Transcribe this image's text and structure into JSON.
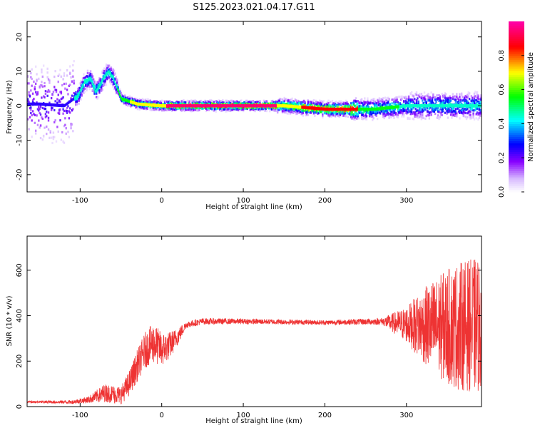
{
  "title": "S125.2023.021.04.17.G11",
  "chart_data": [
    {
      "type": "heatmap",
      "xlabel": "Height of straight line (km)",
      "ylabel": "Frequency (Hz)",
      "xlim": [
        -165,
        392
      ],
      "ylim": [
        -25,
        24.5
      ],
      "xticks": [
        -100,
        0,
        100,
        200,
        300
      ],
      "yticks": [
        -20,
        -10,
        0,
        10,
        20
      ],
      "ridge": [
        {
          "x": -150,
          "y": 0.5
        },
        {
          "x": -120,
          "y": 0
        },
        {
          "x": -103,
          "y": 3
        },
        {
          "x": -95,
          "y": 7
        },
        {
          "x": -88,
          "y": 8
        },
        {
          "x": -82,
          "y": 4
        },
        {
          "x": -76,
          "y": 6
        },
        {
          "x": -72,
          "y": 8
        },
        {
          "x": -66,
          "y": 10
        },
        {
          "x": -60,
          "y": 8
        },
        {
          "x": -50,
          "y": 2
        },
        {
          "x": -30,
          "y": 0.5
        },
        {
          "x": 0,
          "y": 0
        },
        {
          "x": 100,
          "y": 0
        },
        {
          "x": 150,
          "y": 0
        },
        {
          "x": 200,
          "y": -1
        },
        {
          "x": 260,
          "y": -1
        },
        {
          "x": 300,
          "y": 0
        },
        {
          "x": 350,
          "y": 0
        },
        {
          "x": 392,
          "y": 0
        }
      ],
      "colorbar": {
        "label": "Normalized spectral amplitude",
        "range": [
          0,
          1
        ],
        "ticks": [
          0.0,
          0.2,
          0.4,
          0.6,
          0.8
        ],
        "colors": [
          "#ffffff",
          "#8800ff",
          "#0000ff",
          "#00ffff",
          "#00ff00",
          "#ffff00",
          "#ff0000",
          "#ff00aa"
        ]
      }
    },
    {
      "type": "line",
      "xlabel": "Height of straight line (km)",
      "ylabel": "SNR (10 * v/v)",
      "xlim": [
        -165,
        392
      ],
      "ylim": [
        0,
        750
      ],
      "xticks": [
        -100,
        0,
        100,
        200,
        300
      ],
      "yticks": [
        0,
        200,
        400,
        600
      ],
      "series": [
        {
          "color": "#ee3333",
          "mean": [
            {
              "x": -165,
              "y": 20
            },
            {
              "x": -110,
              "y": 20
            },
            {
              "x": -90,
              "y": 30
            },
            {
              "x": -70,
              "y": 60
            },
            {
              "x": -50,
              "y": 50
            },
            {
              "x": -40,
              "y": 100
            },
            {
              "x": -30,
              "y": 180
            },
            {
              "x": -20,
              "y": 250
            },
            {
              "x": -10,
              "y": 280
            },
            {
              "x": 0,
              "y": 250
            },
            {
              "x": 10,
              "y": 270
            },
            {
              "x": 20,
              "y": 310
            },
            {
              "x": 30,
              "y": 360
            },
            {
              "x": 50,
              "y": 375
            },
            {
              "x": 100,
              "y": 375
            },
            {
              "x": 200,
              "y": 370
            },
            {
              "x": 270,
              "y": 375
            },
            {
              "x": 300,
              "y": 360
            },
            {
              "x": 340,
              "y": 350
            },
            {
              "x": 392,
              "y": 360
            }
          ],
          "amplitude": [
            {
              "x": -165,
              "y": 5
            },
            {
              "x": -110,
              "y": 8
            },
            {
              "x": -90,
              "y": 15
            },
            {
              "x": -70,
              "y": 40
            },
            {
              "x": -50,
              "y": 40
            },
            {
              "x": -30,
              "y": 70
            },
            {
              "x": -10,
              "y": 90
            },
            {
              "x": 10,
              "y": 60
            },
            {
              "x": 30,
              "y": 15
            },
            {
              "x": 100,
              "y": 12
            },
            {
              "x": 200,
              "y": 10
            },
            {
              "x": 270,
              "y": 15
            },
            {
              "x": 300,
              "y": 80
            },
            {
              "x": 330,
              "y": 200
            },
            {
              "x": 360,
              "y": 280
            },
            {
              "x": 392,
              "y": 300
            }
          ]
        }
      ]
    }
  ]
}
